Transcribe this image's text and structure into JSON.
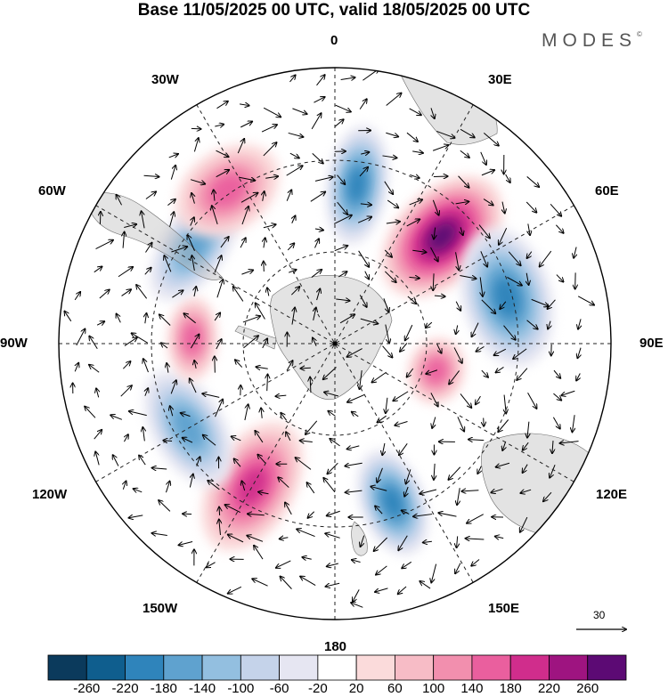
{
  "title": "Base 11/05/2025 00 UTC, valid 18/05/2025 00 UTC",
  "brand": "MODES",
  "brand_mark": "©",
  "lon_labels": {
    "l0": "0",
    "l30e": "30E",
    "l60e": "60E",
    "l90e": "90E",
    "l120e": "120E",
    "l150e": "150E",
    "l180": "180",
    "l150w": "150W",
    "l120w": "120W",
    "l90w": "90W",
    "l60w": "60W",
    "l30w": "30W"
  },
  "reference_vector": {
    "value": "30"
  },
  "colorbar": {
    "colors": [
      "#0b3a5c",
      "#0f5e8e",
      "#2f84bb",
      "#5fa2cf",
      "#93bfe0",
      "#c5d3ea",
      "#e6e6f2",
      "#ffffff",
      "#fbdbdb",
      "#f7bcc6",
      "#f28fae",
      "#ea5f9e",
      "#d02d8c",
      "#9e1480",
      "#5c0a74"
    ],
    "tick_labels": [
      "-260",
      "-220",
      "-180",
      "-140",
      "-100",
      "-60",
      "-20",
      "20",
      "60",
      "100",
      "140",
      "180",
      "220",
      "260"
    ]
  },
  "map_features": {
    "projection": "south polar stereographic",
    "field": "shaded anomaly with wind vectors",
    "anomaly_centers": [
      {
        "lon_deg": 45,
        "sign": "positive",
        "strength": "strongest"
      },
      {
        "lon_deg": 8,
        "sign": "negative",
        "strength": "strong"
      },
      {
        "lon_deg": 75,
        "sign": "negative",
        "strength": "strong"
      },
      {
        "lon_deg": 105,
        "sign": "positive",
        "strength": "moderate"
      },
      {
        "lon_deg": 160,
        "sign": "negative",
        "strength": "strong"
      },
      {
        "lon_deg": -150,
        "sign": "positive",
        "strength": "strong"
      },
      {
        "lon_deg": -120,
        "sign": "negative",
        "strength": "moderate"
      },
      {
        "lon_deg": -88,
        "sign": "positive",
        "strength": "moderate"
      },
      {
        "lon_deg": -55,
        "sign": "negative",
        "strength": "moderate"
      },
      {
        "lon_deg": -35,
        "sign": "positive",
        "strength": "moderate"
      }
    ]
  }
}
